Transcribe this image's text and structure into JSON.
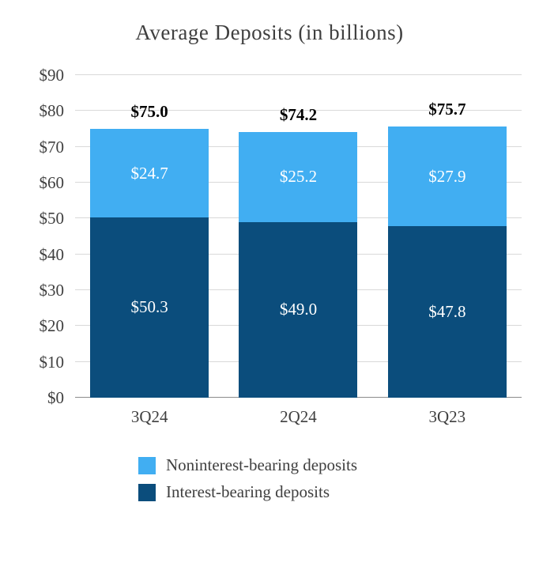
{
  "title": "Average Deposits (in billions)",
  "colors": {
    "light_blue": "#41aef2",
    "dark_blue": "#0b4d7c",
    "gridline": "#d9d9d9",
    "baseline": "#8c8c8c",
    "total_label": "#000000",
    "segment_label": "#ffffff"
  },
  "chart_data": {
    "type": "bar",
    "stacked": true,
    "title": "Average Deposits (in billions)",
    "categories": [
      "3Q24",
      "2Q24",
      "3Q23"
    ],
    "series": [
      {
        "name": "Interest-bearing deposits",
        "color": "#0b4d7c",
        "values": [
          50.3,
          49.0,
          47.8
        ],
        "labels": [
          "$50.3",
          "$49.0",
          "$47.8"
        ]
      },
      {
        "name": "Noninterest-bearing deposits",
        "color": "#41aef2",
        "values": [
          24.7,
          25.2,
          27.9
        ],
        "labels": [
          "$24.7",
          "$25.2",
          "$27.9"
        ]
      }
    ],
    "totals": [
      75.0,
      74.2,
      75.7
    ],
    "total_labels": [
      "$75.0",
      "$74.2",
      "$75.7"
    ],
    "ylim": [
      0,
      90
    ],
    "ytick_step": 10,
    "ytick_labels": [
      "$0",
      "$10",
      "$20",
      "$30",
      "$40",
      "$50",
      "$60",
      "$70",
      "$80",
      "$90"
    ],
    "grid": true,
    "legend_position": "bottom",
    "legend": [
      {
        "label": "Noninterest-bearing deposits",
        "color": "#41aef2"
      },
      {
        "label": "Interest-bearing deposits",
        "color": "#0b4d7c"
      }
    ]
  }
}
